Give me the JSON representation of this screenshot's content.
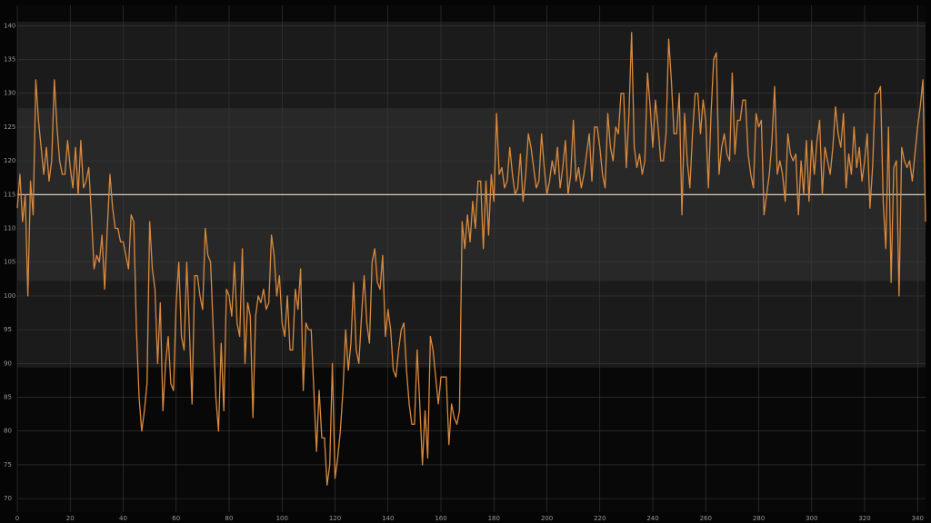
{
  "chart_data": {
    "type": "line",
    "xlim": [
      0,
      343
    ],
    "xticks": [
      0,
      20,
      40,
      60,
      80,
      100,
      120,
      140,
      160,
      180,
      200,
      220,
      240,
      260,
      280,
      300,
      320,
      340
    ],
    "ylim": [
      68,
      143
    ],
    "yticks": [
      70,
      75,
      80,
      85,
      90,
      95,
      100,
      105,
      110,
      115,
      120,
      125,
      130,
      135,
      140
    ],
    "grid": true,
    "color": "#d98a3e",
    "center_line": 115,
    "center_color": "#e8e0d0",
    "bands": [
      {
        "from": 89.4,
        "to": 140.6,
        "color": "#1b1b1b"
      },
      {
        "from": 102.2,
        "to": 127.8,
        "color": "#282828"
      }
    ],
    "values": [
      113,
      118,
      111,
      115,
      100,
      117,
      112,
      132,
      126,
      122,
      118,
      122,
      117,
      120,
      132,
      125,
      120,
      118,
      118,
      123,
      119,
      116,
      122,
      115,
      123,
      116,
      117,
      119,
      112,
      104,
      106,
      105,
      109,
      101,
      110,
      118,
      113,
      110,
      110,
      108,
      108,
      106,
      104,
      112,
      111,
      95,
      85,
      80,
      83,
      87,
      111,
      104,
      101,
      90,
      99,
      83,
      90,
      94,
      87,
      86,
      99,
      105,
      94,
      92,
      105,
      95,
      84,
      103,
      103,
      100,
      98,
      110,
      106,
      105,
      95,
      85,
      80,
      93,
      83,
      101,
      100,
      97,
      105,
      96,
      94,
      107,
      90,
      99,
      97,
      82,
      97,
      100,
      99,
      101,
      98,
      99,
      109,
      106,
      100,
      103,
      96,
      94,
      100,
      92,
      92,
      101,
      98,
      104,
      86,
      96,
      95,
      95,
      86,
      77,
      86,
      79,
      79,
      72,
      75,
      90,
      73,
      76,
      80,
      86,
      95,
      89,
      93,
      102,
      92,
      90,
      97,
      103,
      96,
      93,
      105,
      107,
      102,
      101,
      106,
      94,
      98,
      95,
      89,
      88,
      92,
      95,
      96,
      89,
      84,
      81,
      81,
      92,
      84,
      75,
      83,
      76,
      94,
      92,
      88,
      84,
      88,
      88,
      88,
      78,
      84,
      82,
      81,
      83,
      111,
      107,
      112,
      108,
      114,
      110,
      117,
      117,
      107,
      117,
      109,
      118,
      114,
      127,
      118,
      119,
      116,
      117,
      122,
      118,
      115,
      116,
      121,
      114,
      118,
      124,
      122,
      119,
      116,
      117,
      124,
      119,
      115,
      117,
      120,
      118,
      122,
      116,
      119,
      123,
      115,
      118,
      126,
      117,
      119,
      116,
      118,
      121,
      124,
      117,
      125,
      125,
      122,
      118,
      116,
      127,
      122,
      120,
      125,
      124,
      130,
      130,
      119,
      127,
      139,
      122,
      119,
      121,
      118,
      120,
      133,
      128,
      122,
      129,
      125,
      120,
      120,
      124,
      138,
      132,
      124,
      124,
      130,
      112,
      127,
      120,
      116,
      124,
      130,
      130,
      124,
      129,
      126,
      116,
      127,
      135,
      136,
      118,
      122,
      124,
      121,
      120,
      133,
      121,
      126,
      126,
      129,
      129,
      121,
      118,
      116,
      127,
      125,
      126,
      112,
      115,
      118,
      123,
      131,
      118,
      120,
      118,
      114,
      124,
      121,
      120,
      121,
      112,
      120,
      115,
      123,
      114,
      123,
      118,
      123,
      126,
      115,
      122,
      120,
      118,
      122,
      128,
      124,
      122,
      127,
      116,
      121,
      118,
      125,
      119,
      122,
      117,
      120,
      124,
      113,
      119,
      130,
      130,
      131,
      114,
      107,
      125,
      102,
      119,
      120,
      100,
      122,
      120,
      119,
      120,
      117,
      121,
      125,
      128,
      132,
      111
    ]
  }
}
